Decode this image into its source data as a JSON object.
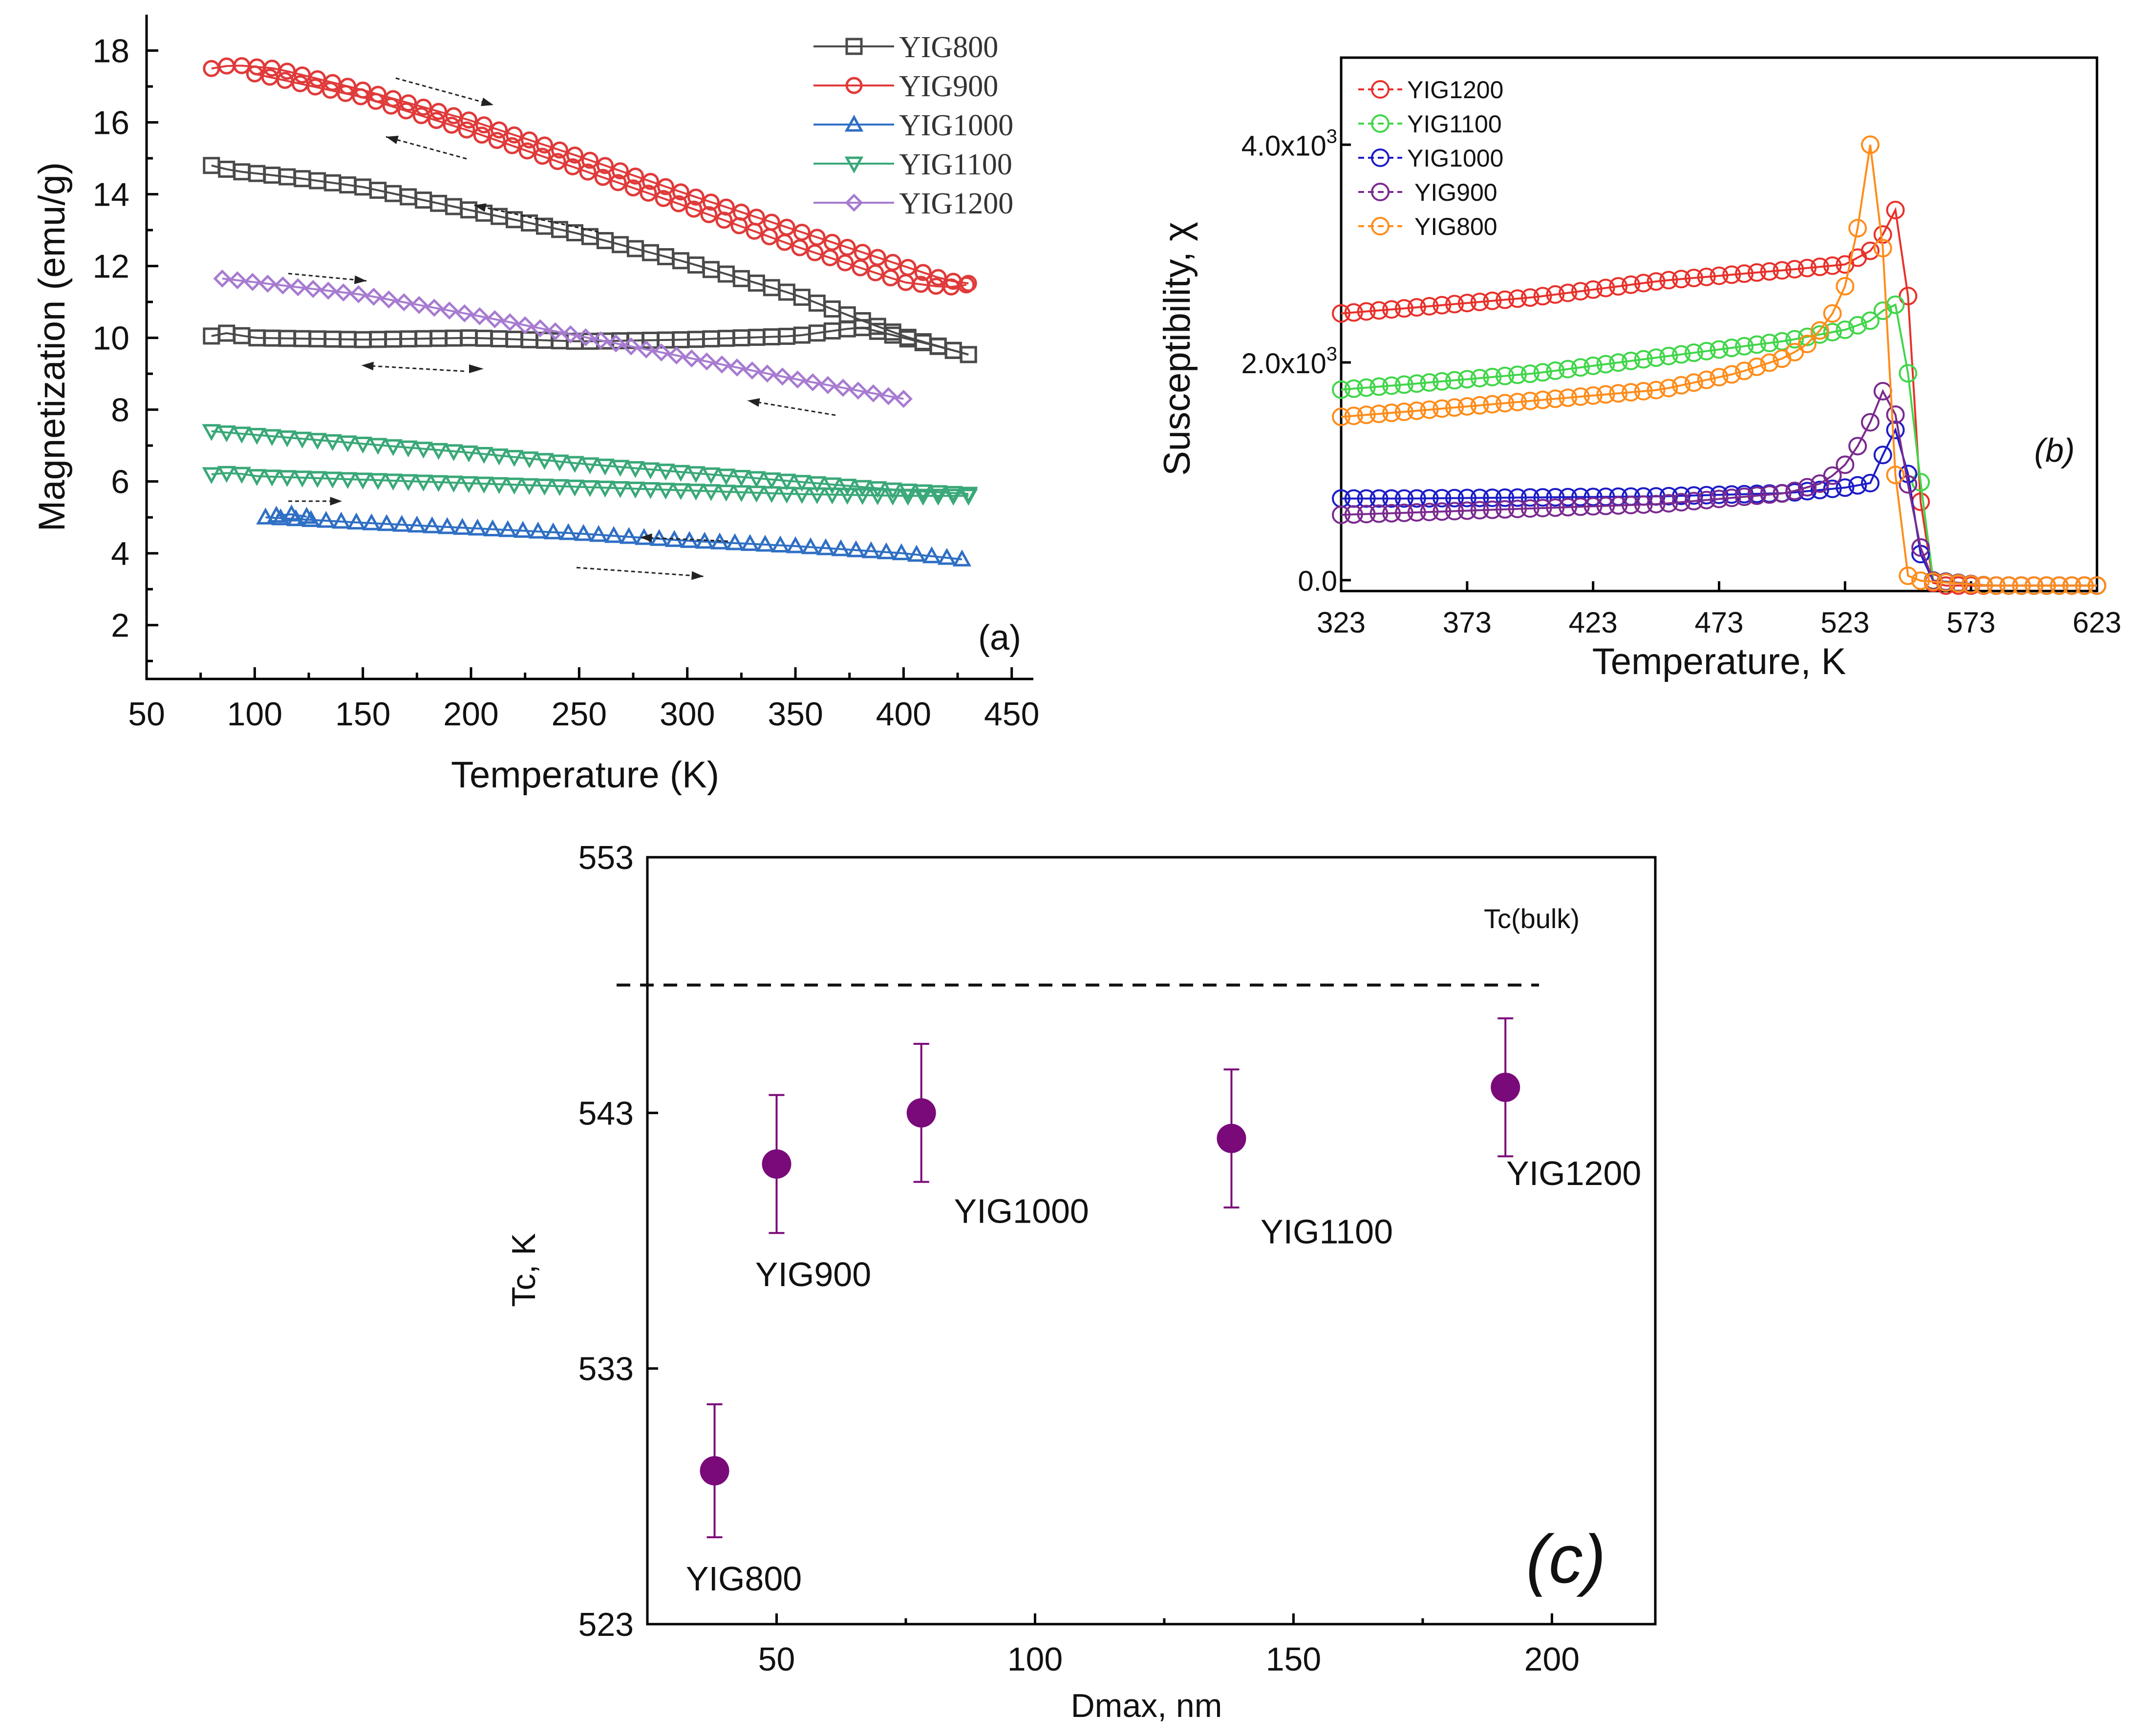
{
  "chart_data": [
    {
      "panel": "a",
      "type": "scatter",
      "panel_label": "(a)",
      "xlabel": "Temperature (K)",
      "ylabel": "Magnetization (emu/g)",
      "xlim": [
        50,
        460
      ],
      "ylim": [
        0.5,
        19
      ],
      "xticks": [
        50,
        100,
        150,
        200,
        250,
        300,
        350,
        400,
        450
      ],
      "yticks": [
        2,
        4,
        6,
        8,
        10,
        12,
        14,
        16,
        18
      ],
      "legend_position": "top-right",
      "series": [
        {
          "name": "YIG800",
          "marker": "square",
          "color": "#4a4a4a",
          "branches": [
            {
              "x": [
                80,
                90,
                120,
                150,
                200,
                250,
                300,
                350,
                380,
                400,
                420,
                432
              ],
              "y": [
                14.8,
                14.65,
                14.45,
                14.2,
                13.55,
                12.9,
                12.1,
                11.2,
                10.5,
                10.05,
                9.7,
                9.5
              ]
            },
            {
              "x": [
                80,
                85,
                100,
                150,
                200,
                250,
                300,
                350,
                380,
                400,
                420,
                432
              ],
              "y": [
                10.05,
                10.15,
                10.0,
                9.95,
                10.0,
                9.9,
                9.95,
                10.05,
                10.3,
                10.0,
                9.7,
                9.5
              ]
            }
          ]
        },
        {
          "name": "YIG900",
          "marker": "circle",
          "color": "#e03a3a",
          "branches": [
            {
              "x": [
                80,
                90,
                110,
                150,
                200,
                250,
                300,
                350,
                400,
                420,
                432
              ],
              "y": [
                17.5,
                17.6,
                17.5,
                16.9,
                16.05,
                15.05,
                14.0,
                13.0,
                12.0,
                11.6,
                11.5
              ]
            },
            {
              "x": [
                100,
                150,
                200,
                250,
                300,
                350,
                400,
                420,
                432
              ],
              "y": [
                17.35,
                16.7,
                15.75,
                14.7,
                13.65,
                12.55,
                11.55,
                11.4,
                11.5
              ]
            }
          ]
        },
        {
          "name": "YIG1000",
          "marker": "triangle-up",
          "color": "#2f6fc4",
          "branches": [
            {
              "x": [
                105,
                150,
                200,
                250,
                300,
                350,
                400,
                432
              ],
              "y": [
                5.0,
                4.85,
                4.7,
                4.55,
                4.35,
                4.2,
                4.0,
                3.8
              ]
            },
            {
              "x": [
                110,
                120,
                125,
                130
              ],
              "y": [
                5.05,
                5.1,
                5.0,
                5.05
              ]
            }
          ]
        },
        {
          "name": "YIG1100",
          "marker": "triangle-down",
          "color": "#3aa878",
          "branches": [
            {
              "x": [
                80,
                100,
                150,
                200,
                250,
                300,
                350,
                400,
                432
              ],
              "y": [
                7.4,
                7.3,
                7.05,
                6.8,
                6.5,
                6.25,
                6.0,
                5.75,
                5.65
              ]
            },
            {
              "x": [
                80,
                90,
                100,
                150,
                200,
                250,
                300,
                350,
                400,
                432
              ],
              "y": [
                6.2,
                6.25,
                6.15,
                6.05,
                5.95,
                5.85,
                5.75,
                5.65,
                5.6,
                5.6
              ]
            }
          ]
        },
        {
          "name": "YIG1200",
          "marker": "diamond",
          "color": "#a77bd0",
          "branches": [
            {
              "x": [
                85,
                100,
                150,
                200,
                250,
                300,
                350,
                400
              ],
              "y": [
                11.65,
                11.55,
                11.2,
                10.65,
                10.05,
                9.45,
                8.85,
                8.3
              ]
            }
          ]
        }
      ]
    },
    {
      "panel": "b",
      "type": "line",
      "panel_label": "(b)",
      "xlabel": "Temperature, K",
      "ylabel": "Susceptibility, χ",
      "xlim": [
        323,
        623
      ],
      "ylim": [
        -0.1,
        4.8
      ],
      "xticks": [
        323,
        373,
        423,
        473,
        523,
        573,
        623
      ],
      "yticks": [
        0.0,
        2.0,
        4.0
      ],
      "ytick_labels": [
        "0.0",
        "2.0x10",
        "4.0x10"
      ],
      "ytick_exponent": "3",
      "ytick_unit": 1000,
      "legend_position": "top-left",
      "series": [
        {
          "name": "YIG1200",
          "color": "#e8302a",
          "x": [
            323,
            350,
            400,
            450,
            500,
            523,
            535,
            541,
            546,
            551,
            556,
            560,
            580,
            623
          ],
          "y": [
            2.45,
            2.5,
            2.6,
            2.75,
            2.85,
            2.9,
            3.05,
            3.3,
            3.55,
            1.2,
            0.0,
            -0.05,
            -0.05,
            -0.05
          ]
        },
        {
          "name": "YIG1100",
          "color": "#41d64a",
          "x": [
            323,
            350,
            400,
            450,
            500,
            523,
            535,
            541,
            546,
            550,
            553,
            557,
            580,
            623
          ],
          "y": [
            1.75,
            1.8,
            1.9,
            2.05,
            2.2,
            2.3,
            2.4,
            2.55,
            2.5,
            1.3,
            0.9,
            0.0,
            -0.05,
            -0.05
          ]
        },
        {
          "name": "YIG1000",
          "color": "#1c1cc8",
          "x": [
            323,
            350,
            400,
            450,
            500,
            523,
            535,
            541,
            546,
            550,
            555,
            580,
            623
          ],
          "y": [
            0.75,
            0.75,
            0.76,
            0.77,
            0.8,
            0.85,
            0.9,
            1.4,
            1.35,
            0.6,
            0.0,
            -0.05,
            -0.05
          ]
        },
        {
          "name": "YIG900",
          "color": "#7a2a8f",
          "x": [
            323,
            350,
            400,
            450,
            500,
            515,
            525,
            533,
            540,
            545,
            550,
            556,
            580,
            623
          ],
          "y": [
            0.6,
            0.62,
            0.66,
            0.7,
            0.8,
            0.9,
            1.1,
            1.45,
            1.85,
            1.3,
            0.6,
            0.0,
            -0.05,
            -0.05
          ]
        },
        {
          "name": "YIG800",
          "color": "#ff8c1a",
          "x": [
            323,
            350,
            400,
            450,
            480,
            500,
            510,
            518,
            523,
            527,
            530,
            533,
            536,
            539,
            542,
            545,
            550,
            580,
            623
          ],
          "y": [
            1.5,
            1.55,
            1.65,
            1.75,
            1.9,
            2.05,
            2.2,
            2.45,
            2.7,
            3.05,
            3.6,
            4.0,
            3.75,
            2.7,
            1.4,
            0.1,
            0.0,
            -0.05,
            -0.05
          ]
        }
      ]
    },
    {
      "panel": "c",
      "type": "scatter",
      "panel_label": "(c)",
      "xlabel": "Dmax, nm",
      "ylabel": "Tc, K",
      "xlim": [
        25,
        220
      ],
      "ylim": [
        523,
        553
      ],
      "xticks": [
        50,
        100,
        150,
        200
      ],
      "yticks": [
        523,
        533,
        543,
        553
      ],
      "reference_line": {
        "label": "Tc(bulk)",
        "y": 548,
        "style": "dashed"
      },
      "color": "#7a0a7a",
      "points": [
        {
          "name": "YIG800",
          "x": 38,
          "y": 529,
          "yerr": 2.6
        },
        {
          "name": "YIG900",
          "x": 50,
          "y": 541,
          "yerr": 2.7
        },
        {
          "name": "YIG1000",
          "x": 78,
          "y": 543,
          "yerr": 2.7
        },
        {
          "name": "YIG1100",
          "x": 138,
          "y": 542,
          "yerr": 2.7
        },
        {
          "name": "YIG1200",
          "x": 191,
          "y": 544,
          "yerr": 2.7
        }
      ]
    }
  ]
}
